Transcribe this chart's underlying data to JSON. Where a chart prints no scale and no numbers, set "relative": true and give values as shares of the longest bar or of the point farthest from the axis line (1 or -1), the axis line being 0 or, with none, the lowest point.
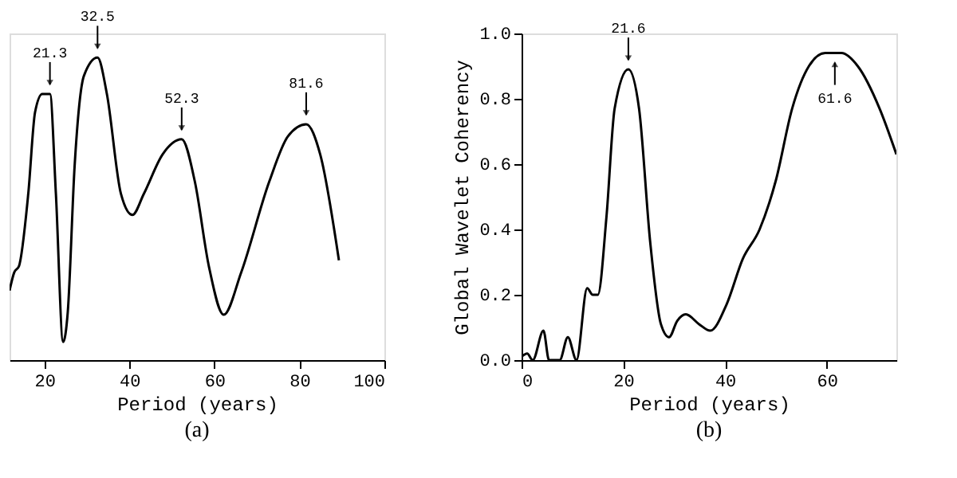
{
  "chart_data": [
    {
      "type": "line",
      "relative": true,
      "xlabel": "Period (years)",
      "color": "#000000",
      "grid": false,
      "xlim": [
        11.8,
        100
      ],
      "xticks": [
        20,
        40,
        60,
        80,
        100
      ],
      "x": [
        11.8,
        12.9,
        14.0,
        16.2,
        17.8,
        19.5,
        21.3,
        22.7,
        24.4,
        25.5,
        27.1,
        29.3,
        32.5,
        34.7,
        38.0,
        40.7,
        43.4,
        47.8,
        52.3,
        55.4,
        58.7,
        62.2,
        66.3,
        72.9,
        77.3,
        81.6,
        84.9,
        89.3
      ],
      "values": [
        0.23,
        0.29,
        0.31,
        0.55,
        0.82,
        0.88,
        0.88,
        0.55,
        0.06,
        0.16,
        0.64,
        0.94,
        1.0,
        0.88,
        0.55,
        0.48,
        0.55,
        0.68,
        0.73,
        0.59,
        0.31,
        0.15,
        0.29,
        0.59,
        0.74,
        0.78,
        0.68,
        0.33
      ],
      "annotations": [
        {
          "text": "21.3",
          "x": 21.3,
          "y": 0.88
        },
        {
          "text": "32.5",
          "x": 32.5,
          "y": 1.0
        },
        {
          "text": "52.3",
          "x": 52.3,
          "y": 0.73
        },
        {
          "text": "81.6",
          "x": 81.6,
          "y": 0.78
        },
        "(a)"
      ]
    },
    {
      "type": "line",
      "xlabel": "Period (years)",
      "ylabel": "Global Wavelet Coherency",
      "color": "#000000",
      "grid": false,
      "xlim": [
        0,
        73.7
      ],
      "xticks": [
        0,
        20,
        40,
        60
      ],
      "ylim": [
        0,
        1
      ],
      "yticks": [
        {
          "value": 0,
          "label": "0.0"
        },
        0.2,
        0.4,
        0.6,
        0.8,
        {
          "value": 1,
          "label": "1.0"
        }
      ],
      "x": [
        0,
        1.1,
        2.2,
        4.3,
        5.4,
        7.5,
        9.1,
        10.8,
        12.9,
        14.0,
        15.0,
        16.7,
        18.3,
        21.0,
        23.1,
        25.3,
        27.4,
        29.0,
        30.6,
        32.3,
        34.9,
        37.1,
        40.3,
        43.5,
        46.8,
        50.0,
        53.2,
        56.5,
        59.7,
        62.9,
        66.1,
        70.4,
        73.7
      ],
      "values": [
        0.01,
        0.02,
        0.0,
        0.09,
        0.0,
        0.0,
        0.07,
        0.0,
        0.22,
        0.2,
        0.2,
        0.44,
        0.77,
        0.89,
        0.77,
        0.36,
        0.11,
        0.07,
        0.12,
        0.14,
        0.11,
        0.09,
        0.17,
        0.31,
        0.4,
        0.55,
        0.77,
        0.9,
        0.94,
        0.94,
        0.9,
        0.77,
        0.63
      ],
      "annotations": [
        {
          "text": "21.6",
          "x": 21.0,
          "y": 0.89
        },
        {
          "text": "61.6",
          "x": 61.6,
          "y": 0.94
        },
        "(b)"
      ]
    }
  ]
}
